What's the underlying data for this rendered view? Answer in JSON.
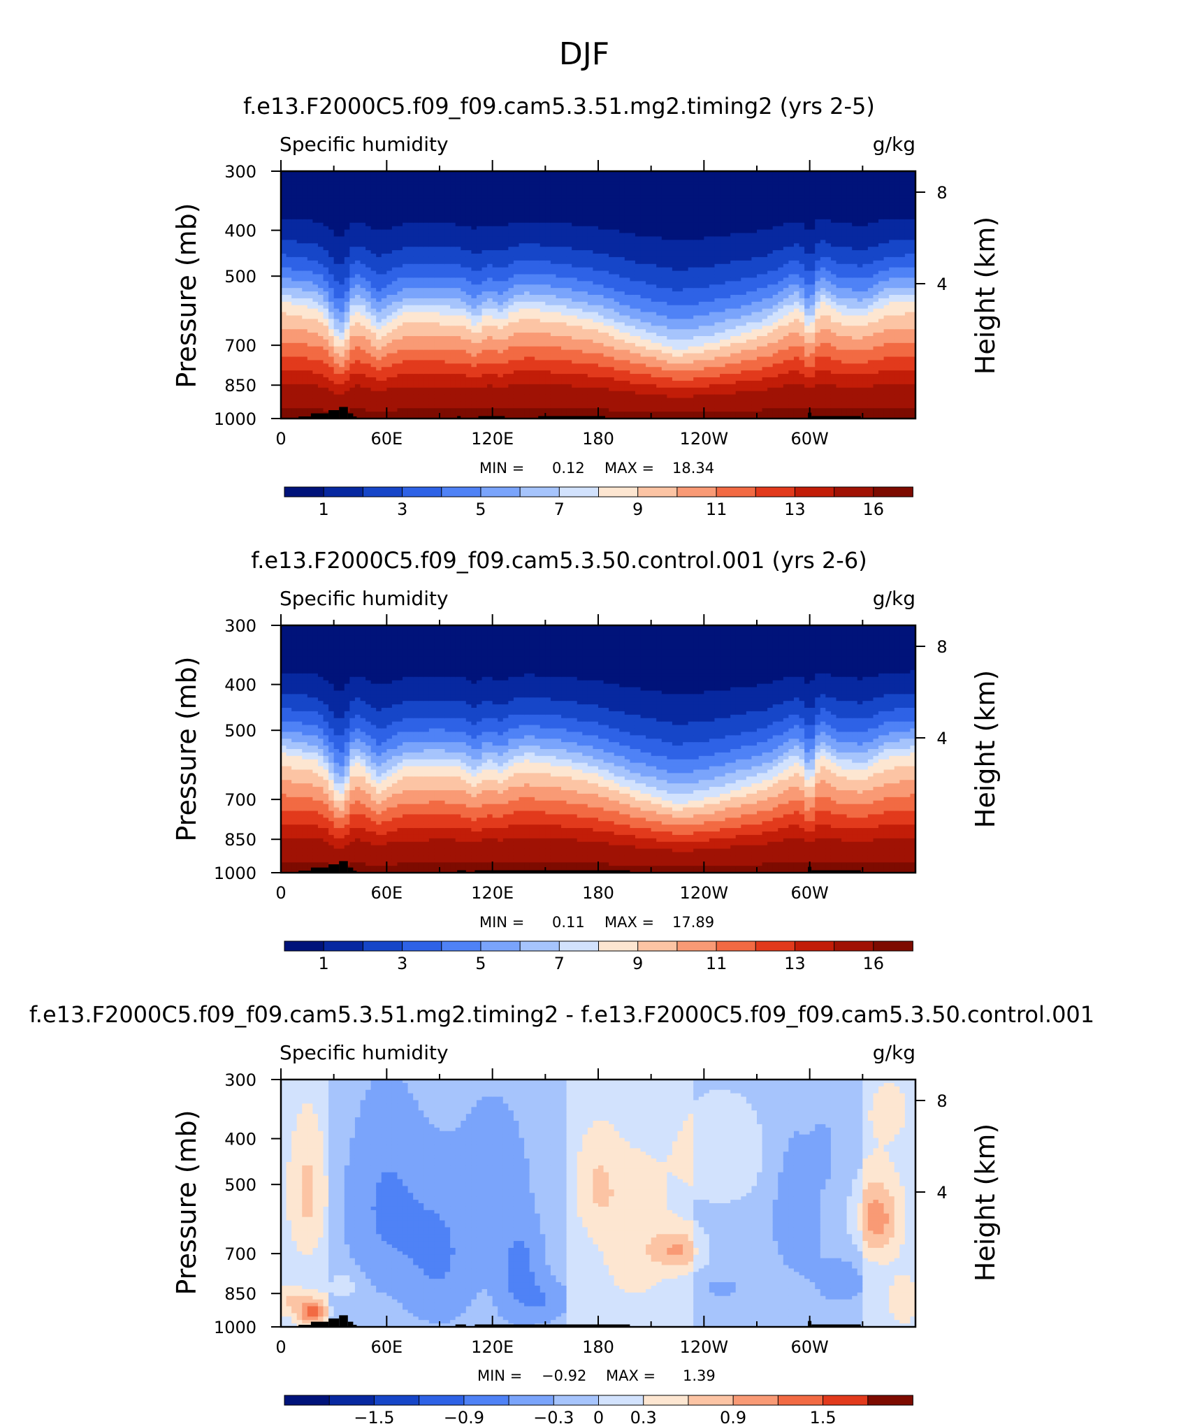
{
  "figure": {
    "season": "DJF"
  },
  "chart_data": [
    {
      "type": "heatmap",
      "title": "f.e13.F2000C5.f09_f09.cam5.3.51.mg2.timing2 (yrs 2-5)",
      "field_label": "Specific humidity",
      "units": "g/kg",
      "ylabel": "Pressure (mb)",
      "ylabel_right": "Height (km)",
      "x_ticks": [
        "0",
        "60E",
        "120E",
        "180",
        "120W",
        "60W"
      ],
      "y_ticks": [
        "300",
        "400",
        "500",
        "700",
        "850",
        "1000"
      ],
      "y_right_ticks": [
        "8",
        "4"
      ],
      "xlim": [
        0,
        360
      ],
      "ylim": [
        1000,
        300
      ],
      "stats": {
        "min_label": "MIN =",
        "min": "0.12",
        "max_label": "MAX =",
        "max": "18.34"
      },
      "colorbar": {
        "levels": [
          1,
          2,
          3,
          4,
          5,
          6,
          7,
          8,
          9,
          10,
          11,
          12,
          13,
          14,
          16
        ],
        "labels": [
          "1",
          "3",
          "5",
          "7",
          "9",
          "11",
          "13",
          "16"
        ],
        "colors": [
          "#00137a",
          "#0728a0",
          "#1646c8",
          "#2e62e6",
          "#4f82f6",
          "#7aa4fb",
          "#a6c4fc",
          "#d2e2fd",
          "#fde6d1",
          "#fcc4a4",
          "#f99a75",
          "#f26a43",
          "#e23a1c",
          "#c21d08",
          "#a01204",
          "#7d0b00"
        ]
      },
      "field": {
        "kind": "humidity",
        "profile_lon": [
          0,
          20,
          30,
          40,
          55,
          70,
          90,
          110,
          125,
          140,
          160,
          180,
          200,
          225,
          240,
          258,
          275,
          292,
          306,
          316,
          330,
          345,
          360
        ],
        "profile_p": [
          565,
          585,
          620,
          560,
          650,
          600,
          600,
          610,
          600,
          585,
          600,
          625,
          670,
          715,
          700,
          670,
          640,
          585,
          560,
          600,
          610,
          570,
          565
        ],
        "surface_p": [
          1015,
          1012,
          1010,
          1012,
          1012,
          1010,
          1010,
          1006,
          1002,
          1000,
          1002,
          1006,
          1010,
          1014,
          1014,
          1010,
          1006,
          1000,
          1006,
          1008,
          1010,
          1014,
          1015
        ],
        "bumps": [
          {
            "lon": 35,
            "amp": 90,
            "w": 6
          },
          {
            "lon": 300,
            "amp": 70,
            "w": 4
          },
          {
            "lon": 110,
            "amp": 25,
            "w": 4
          },
          {
            "lon": 125,
            "amp": 20,
            "w": 4
          }
        ]
      },
      "terrain": [
        [
          10,
          17,
          990
        ],
        [
          17,
          27,
          975
        ],
        [
          27,
          33,
          960
        ],
        [
          33,
          38,
          945
        ],
        [
          38,
          41,
          975
        ],
        [
          41,
          43,
          990
        ],
        [
          100,
          102,
          988
        ],
        [
          112,
          127,
          988
        ],
        [
          146,
          184,
          988
        ],
        [
          299,
          301,
          972
        ],
        [
          301,
          329,
          988
        ]
      ]
    },
    {
      "type": "heatmap",
      "title": "f.e13.F2000C5.f09_f09.cam5.3.50.control.001 (yrs 2-6)",
      "field_label": "Specific humidity",
      "units": "g/kg",
      "ylabel": "Pressure (mb)",
      "ylabel_right": "Height (km)",
      "x_ticks": [
        "0",
        "60E",
        "120E",
        "180",
        "120W",
        "60W"
      ],
      "y_ticks": [
        "300",
        "400",
        "500",
        "700",
        "850",
        "1000"
      ],
      "y_right_ticks": [
        "8",
        "4"
      ],
      "xlim": [
        0,
        360
      ],
      "ylim": [
        1000,
        300
      ],
      "stats": {
        "min_label": "MIN =",
        "min": "0.11",
        "max_label": "MAX =",
        "max": "17.89"
      },
      "colorbar": {
        "levels": [
          1,
          2,
          3,
          4,
          5,
          6,
          7,
          8,
          9,
          10,
          11,
          12,
          13,
          14,
          16
        ],
        "labels": [
          "1",
          "3",
          "5",
          "7",
          "9",
          "11",
          "13",
          "16"
        ],
        "colors": [
          "#00137a",
          "#0728a0",
          "#1646c8",
          "#2e62e6",
          "#4f82f6",
          "#7aa4fb",
          "#a6c4fc",
          "#d2e2fd",
          "#fde6d1",
          "#fcc4a4",
          "#f99a75",
          "#f26a43",
          "#e23a1c",
          "#c21d08",
          "#a01204",
          "#7d0b00"
        ]
      },
      "field": {
        "kind": "humidity",
        "profile_lon": [
          0,
          20,
          30,
          40,
          55,
          70,
          90,
          110,
          125,
          140,
          160,
          180,
          200,
          225,
          240,
          258,
          275,
          292,
          306,
          316,
          330,
          345,
          360
        ],
        "profile_p": [
          560,
          580,
          620,
          555,
          650,
          600,
          595,
          605,
          595,
          580,
          595,
          622,
          668,
          715,
          700,
          668,
          640,
          583,
          558,
          598,
          608,
          568,
          560
        ],
        "surface_p": [
          1015,
          1012,
          1010,
          1012,
          1012,
          1010,
          1010,
          1006,
          1002,
          1000,
          1002,
          1006,
          1010,
          1014,
          1014,
          1010,
          1006,
          1000,
          1006,
          1008,
          1010,
          1014,
          1015
        ],
        "bumps": [
          {
            "lon": 35,
            "amp": 90,
            "w": 6
          },
          {
            "lon": 300,
            "amp": 70,
            "w": 4
          },
          {
            "lon": 110,
            "amp": 25,
            "w": 4
          },
          {
            "lon": 125,
            "amp": 20,
            "w": 4
          }
        ]
      },
      "terrain": [
        [
          10,
          17,
          990
        ],
        [
          17,
          27,
          975
        ],
        [
          27,
          33,
          960
        ],
        [
          33,
          38,
          945
        ],
        [
          38,
          41,
          975
        ],
        [
          41,
          43,
          990
        ],
        [
          100,
          105,
          988
        ],
        [
          110,
          198,
          988
        ],
        [
          299,
          301,
          972
        ],
        [
          301,
          329,
          988
        ]
      ]
    },
    {
      "type": "heatmap",
      "title": "f.e13.F2000C5.f09_f09.cam5.3.51.mg2.timing2 - f.e13.F2000C5.f09_f09.cam5.3.50.control.001",
      "field_label": "Specific humidity",
      "units": "g/kg",
      "ylabel": "Pressure (mb)",
      "ylabel_right": "Height (km)",
      "x_ticks": [
        "0",
        "60E",
        "120E",
        "180",
        "120W",
        "60W"
      ],
      "y_ticks": [
        "300",
        "400",
        "500",
        "700",
        "850",
        "1000"
      ],
      "y_right_ticks": [
        "8",
        "4"
      ],
      "xlim": [
        0,
        360
      ],
      "ylim": [
        1000,
        300
      ],
      "stats": {
        "min_label": "MIN =",
        "min": "−0.92",
        "max_label": "MAX =",
        "max": "1.39"
      },
      "colorbar": {
        "levels": [
          -1.8,
          -1.5,
          -1.2,
          -0.9,
          -0.6,
          -0.3,
          0,
          0.3,
          0.6,
          0.9,
          1.2,
          1.5,
          1.8
        ],
        "labels": [
          "−1.5",
          "−0.9",
          "−0.3",
          "0",
          "0.3",
          "0.9",
          "1.5"
        ],
        "label_values": [
          -1.5,
          -0.9,
          -0.3,
          0,
          0.3,
          0.9,
          1.5
        ],
        "colors": [
          "#00137a",
          "#0728a0",
          "#1646c8",
          "#2e62e6",
          "#4f82f6",
          "#7aa4fb",
          "#a6c4fc",
          "#d2e2fd",
          "#fde6d1",
          "#fcc4a4",
          "#f99a75",
          "#f26a43",
          "#e23a1c",
          "#7d0b00"
        ]
      },
      "field": {
        "kind": "difference",
        "blobs": [
          {
            "lon": 15,
            "p": 520,
            "dl": 10,
            "dp": 160,
            "v": 0.55
          },
          {
            "lon": 18,
            "p": 930,
            "dl": 8,
            "dp": 60,
            "v": 1.3
          },
          {
            "lon": 5,
            "p": 880,
            "dl": 8,
            "dp": 60,
            "v": 0.5
          },
          {
            "lon": 35,
            "p": 820,
            "dl": 8,
            "dp": 50,
            "v": 0.45
          },
          {
            "lon": 60,
            "p": 560,
            "dl": 20,
            "dp": 220,
            "v": -0.45
          },
          {
            "lon": 90,
            "p": 700,
            "dl": 20,
            "dp": 230,
            "v": -0.45
          },
          {
            "lon": 135,
            "p": 760,
            "dl": 12,
            "dp": 180,
            "v": -0.55
          },
          {
            "lon": 120,
            "p": 460,
            "dl": 16,
            "dp": 120,
            "v": -0.35
          },
          {
            "lon": 150,
            "p": 880,
            "dl": 12,
            "dp": 80,
            "v": -0.35
          },
          {
            "lon": 180,
            "p": 500,
            "dl": 12,
            "dp": 120,
            "v": 0.45
          },
          {
            "lon": 200,
            "p": 650,
            "dl": 18,
            "dp": 220,
            "v": 0.35
          },
          {
            "lon": 225,
            "p": 690,
            "dl": 14,
            "dp": 70,
            "v": 0.75
          },
          {
            "lon": 250,
            "p": 830,
            "dl": 12,
            "dp": 40,
            "v": -0.3
          },
          {
            "lon": 250,
            "p": 430,
            "dl": 30,
            "dp": 120,
            "v": 0.3
          },
          {
            "lon": 292,
            "p": 560,
            "dl": 14,
            "dp": 200,
            "v": -0.45
          },
          {
            "lon": 308,
            "p": 430,
            "dl": 6,
            "dp": 60,
            "v": -0.35
          },
          {
            "lon": 318,
            "p": 800,
            "dl": 16,
            "dp": 100,
            "v": -0.35
          },
          {
            "lon": 338,
            "p": 590,
            "dl": 12,
            "dp": 110,
            "v": 0.9
          },
          {
            "lon": 353,
            "p": 880,
            "dl": 8,
            "dp": 100,
            "v": 0.35
          },
          {
            "lon": 345,
            "p": 350,
            "dl": 14,
            "dp": 60,
            "v": 0.2
          }
        ],
        "base": [
          {
            "lon": [
              0,
              28
            ],
            "v": 0.15
          },
          {
            "lon": [
              28,
              162
            ],
            "v": -0.2
          },
          {
            "lon": [
              162,
              235
            ],
            "v": 0.15
          },
          {
            "lon": [
              235,
              330
            ],
            "v": -0.12
          },
          {
            "lon": [
              330,
              360
            ],
            "v": 0.18
          }
        ]
      },
      "terrain": [
        [
          10,
          17,
          990
        ],
        [
          17,
          27,
          975
        ],
        [
          27,
          33,
          960
        ],
        [
          33,
          38,
          945
        ],
        [
          38,
          41,
          975
        ],
        [
          41,
          43,
          990
        ],
        [
          99,
          105,
          988
        ],
        [
          110,
          198,
          988
        ],
        [
          299,
          301,
          972
        ],
        [
          301,
          329,
          988
        ]
      ]
    }
  ]
}
